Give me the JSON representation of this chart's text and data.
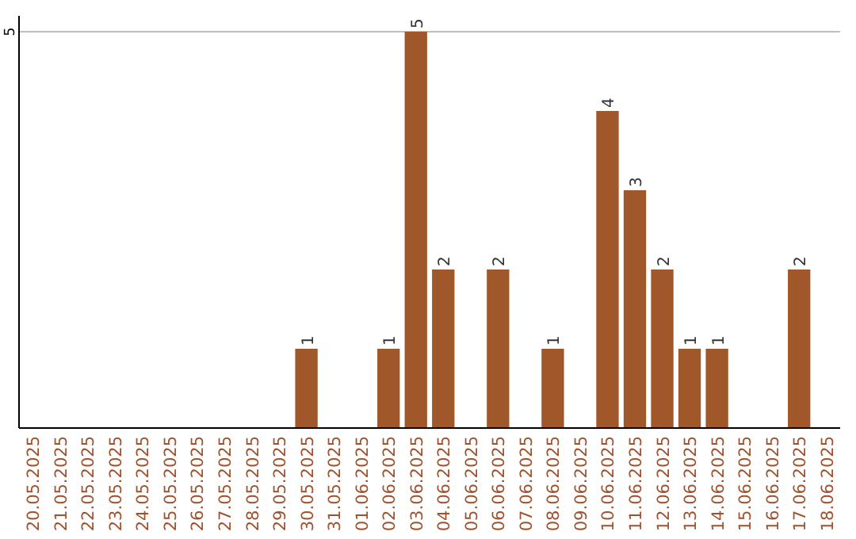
{
  "chart_data": {
    "type": "bar",
    "categories": [
      "20.05.2025",
      "21.05.2025",
      "22.05.2025",
      "23.05.2025",
      "24.05.2025",
      "25.05.2025",
      "26.05.2025",
      "27.05.2025",
      "28.05.2025",
      "29.05.2025",
      "30.05.2025",
      "31.05.2025",
      "01.06.2025",
      "02.06.2025",
      "03.06.2025",
      "04.06.2025",
      "05.06.2025",
      "06.06.2025",
      "07.06.2025",
      "08.06.2025",
      "09.06.2025",
      "10.06.2025",
      "11.06.2025",
      "12.06.2025",
      "13.06.2025",
      "14.06.2025",
      "15.06.2025",
      "16.06.2025",
      "17.06.2025",
      "18.06.2025"
    ],
    "values": [
      0,
      0,
      0,
      0,
      0,
      0,
      0,
      0,
      0,
      0,
      1,
      0,
      0,
      1,
      5,
      2,
      0,
      2,
      0,
      1,
      0,
      4,
      3,
      2,
      1,
      1,
      0,
      0,
      2,
      0
    ],
    "value_labels": [
      null,
      null,
      null,
      null,
      null,
      null,
      null,
      null,
      null,
      null,
      "1",
      null,
      null,
      "1",
      "5",
      "2",
      null,
      "2",
      null,
      "1",
      null,
      "4",
      "3",
      "2",
      "1",
      "1",
      null,
      null,
      "2",
      null
    ],
    "color": "#a0582a",
    "ylim": [
      0,
      5.2
    ],
    "yticks": [
      5
    ],
    "grid": "y"
  }
}
